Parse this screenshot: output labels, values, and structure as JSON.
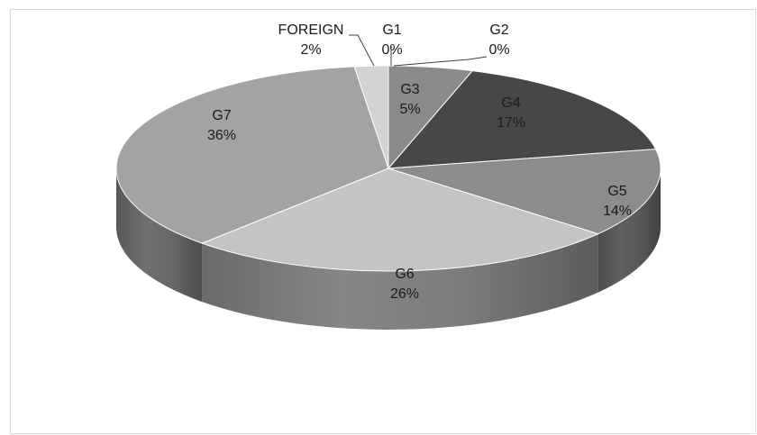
{
  "chart_data": {
    "type": "pie",
    "title": "",
    "categories": [
      "G1",
      "G2",
      "G3",
      "G4",
      "G5",
      "G6",
      "G7",
      "FOREIGN"
    ],
    "values": [
      0,
      0,
      5,
      17,
      14,
      26,
      36,
      2
    ],
    "labels": [
      "G1\n0%",
      "G2\n0%",
      "G3\n5%",
      "G4\n17%",
      "G5\n14%",
      "G6\n26%",
      "G7\n36%",
      "FOREIGN\n2%"
    ],
    "colors": {
      "G1": "#a6a6a6",
      "G2": "#6e6e6e",
      "G3": "#8a8a8a",
      "G4": "#474747",
      "G5": "#8c8c8c",
      "G6": "#c4c4c4",
      "G7": "#a3a3a3",
      "FOREIGN": "#d3d3d3"
    },
    "style": "3d",
    "legend": "none",
    "start_angle_clock": "12 o'clock",
    "direction": "clockwise"
  }
}
